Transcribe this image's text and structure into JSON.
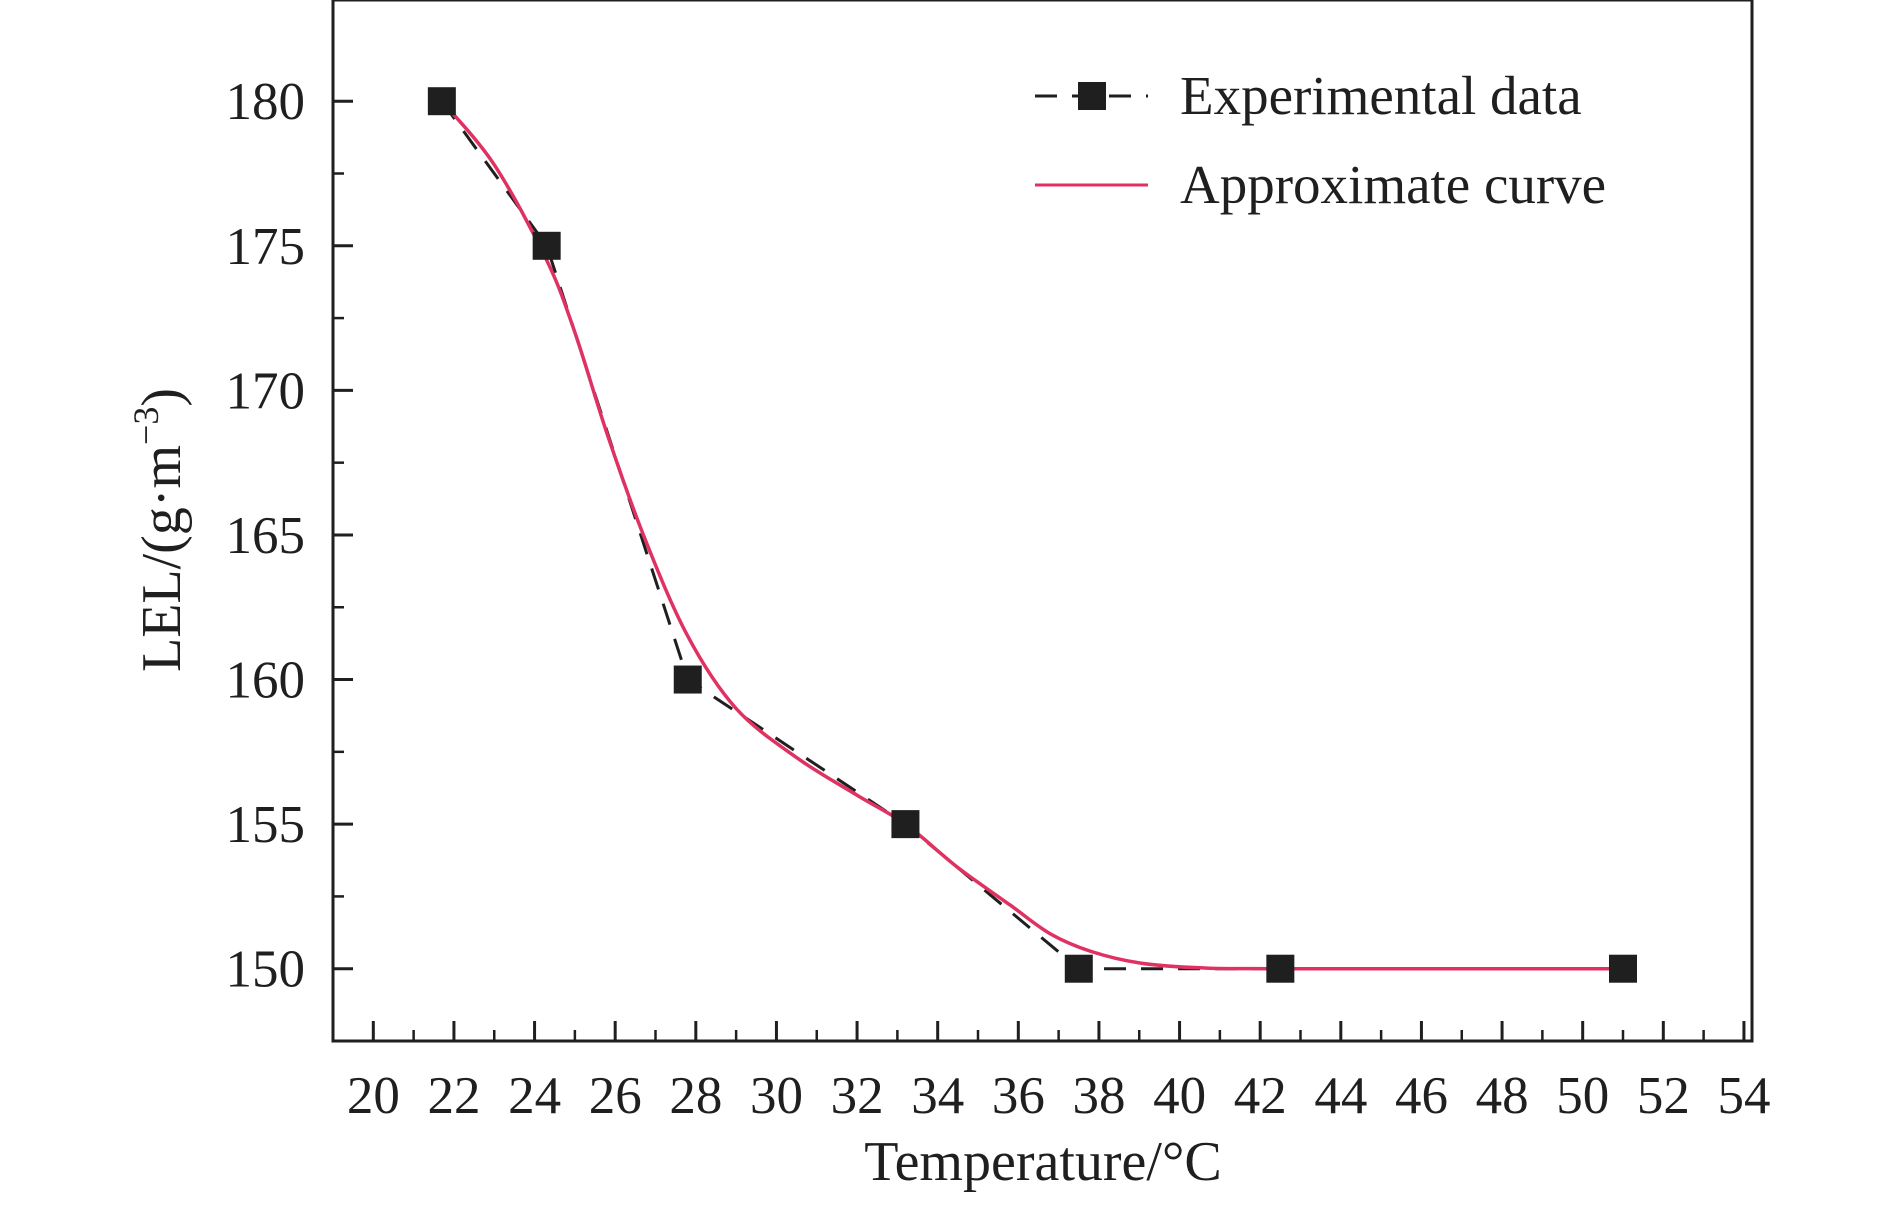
{
  "chart_data": {
    "type": "line",
    "xlabel": "Temperature/°C",
    "ylabel_base": "LEL/(g·m",
    "ylabel_sup": "−3",
    "ylabel_close": ")",
    "xlim": [
      19,
      54.2
    ],
    "ylim": [
      147.5,
      183.5
    ],
    "xticks": [
      20,
      22,
      24,
      26,
      28,
      30,
      32,
      34,
      36,
      38,
      40,
      42,
      44,
      46,
      48,
      50,
      52,
      54
    ],
    "yticks": [
      150,
      155,
      160,
      165,
      170,
      175,
      180
    ],
    "grid": false,
    "legend_position": "top-right",
    "series": [
      {
        "name": "Experimental data",
        "style": "dashed-square-markers",
        "color": "#1f1f1f",
        "points": [
          [
            21.7,
            180
          ],
          [
            24.3,
            175
          ],
          [
            27.8,
            160
          ],
          [
            33.2,
            155
          ],
          [
            37.5,
            150
          ],
          [
            42.5,
            150
          ],
          [
            51.0,
            150
          ]
        ]
      },
      {
        "name": "Approximate curve",
        "style": "solid",
        "color": "#e03262",
        "points": [
          [
            21.7,
            180
          ],
          [
            23.0,
            177.8
          ],
          [
            24.3,
            174.5
          ],
          [
            25.0,
            172.0
          ],
          [
            25.8,
            168.5
          ],
          [
            26.7,
            165.0
          ],
          [
            27.8,
            161.5
          ],
          [
            29.0,
            159.0
          ],
          [
            30.5,
            157.3
          ],
          [
            32.0,
            156.0
          ],
          [
            33.2,
            155.0
          ],
          [
            34.5,
            153.5
          ],
          [
            35.8,
            152.2
          ],
          [
            36.8,
            151.2
          ],
          [
            37.8,
            150.6
          ],
          [
            39.0,
            150.2
          ],
          [
            40.5,
            150.03
          ],
          [
            42.5,
            150
          ],
          [
            51.0,
            150
          ]
        ]
      }
    ]
  }
}
